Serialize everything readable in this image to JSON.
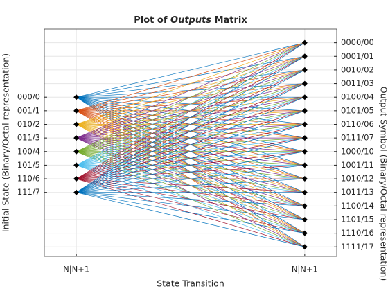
{
  "chart_data": {
    "type": "trellis",
    "title_parts": [
      "Plot of ",
      "Outputs",
      " Matrix"
    ],
    "xlabel": "State Transition",
    "ylabel": "Initial State (Binary/Octal representation)",
    "y2label": "Output Symbol (Binary/Octal representation)",
    "xlim": [
      0.86,
      2.14
    ],
    "xticks": [
      {
        "value": 1,
        "label": "N|N+1"
      },
      {
        "value": 2,
        "label": "N|N+1"
      }
    ],
    "ylim": [
      -1,
      15.7
    ],
    "ydir": "reverse",
    "yticks": [
      {
        "value": 4,
        "label": "000/0"
      },
      {
        "value": 5,
        "label": "001/1"
      },
      {
        "value": 6,
        "label": "010/2"
      },
      {
        "value": 7,
        "label": "011/3"
      },
      {
        "value": 8,
        "label": "100/4"
      },
      {
        "value": 9,
        "label": "101/5"
      },
      {
        "value": 10,
        "label": "110/6"
      },
      {
        "value": 11,
        "label": "111/7"
      }
    ],
    "y2lim": [
      -1,
      15.7
    ],
    "y2ticks": [
      {
        "value": 0,
        "label": "0000/00"
      },
      {
        "value": 1,
        "label": "0001/01"
      },
      {
        "value": 2,
        "label": "0010/02"
      },
      {
        "value": 3,
        "label": "0011/03"
      },
      {
        "value": 4,
        "label": "0100/04"
      },
      {
        "value": 5,
        "label": "0101/05"
      },
      {
        "value": 6,
        "label": "0110/06"
      },
      {
        "value": 7,
        "label": "0111/07"
      },
      {
        "value": 8,
        "label": "1000/10"
      },
      {
        "value": 9,
        "label": "1001/11"
      },
      {
        "value": 10,
        "label": "1010/12"
      },
      {
        "value": 11,
        "label": "1011/13"
      },
      {
        "value": 12,
        "label": "1100/14"
      },
      {
        "value": 13,
        "label": "1101/15"
      },
      {
        "value": 14,
        "label": "1110/16"
      },
      {
        "value": 15,
        "label": "1111/17"
      }
    ],
    "colors": [
      "#0072bd",
      "#d95319",
      "#edb120",
      "#7e2f8e",
      "#77ac30",
      "#4dbeee",
      "#a2142f"
    ],
    "node_color": "#000000",
    "grid": true
  }
}
